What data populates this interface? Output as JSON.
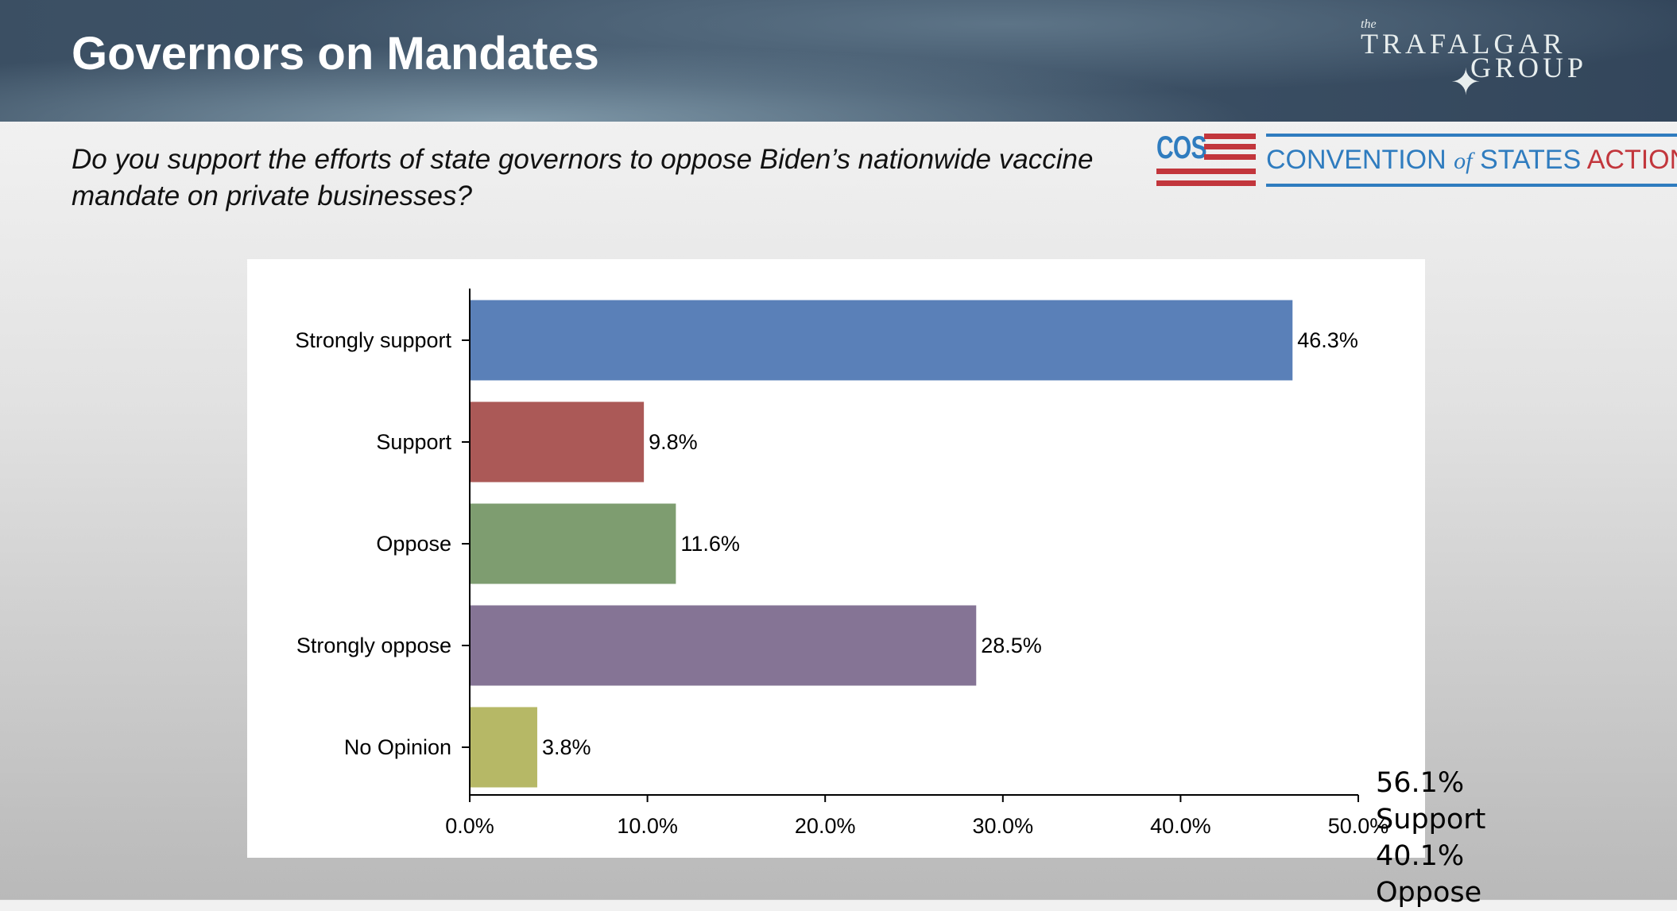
{
  "header": {
    "title": "Governors on Mandates"
  },
  "logos": {
    "trafalgar": {
      "the": "the",
      "line1": "TRAFALGAR",
      "line2": "GROUP",
      "text": "the TRAFALGAR GROUP"
    },
    "cos": {
      "abbr": "COS",
      "part1": "CONVENTION",
      "part2": "of",
      "part3": "STATES",
      "part4": "ACTION",
      "blue": "#2f7cbf",
      "red": "#c2363c"
    }
  },
  "question": "Do you support the efforts of state governors to oppose Biden’s nationwide vaccine mandate on private businesses?",
  "summary": {
    "support": "56.1% Support",
    "oppose": "40.1% Oppose"
  },
  "chart_data": {
    "type": "bar",
    "orientation": "horizontal",
    "categories": [
      "Strongly support",
      "Support",
      "Oppose",
      "Strongly oppose",
      "No Opinion"
    ],
    "values": [
      46.3,
      9.8,
      11.6,
      28.5,
      3.8
    ],
    "data_labels": [
      "46.3%",
      "9.8%",
      "11.6%",
      "28.5%",
      "3.8%"
    ],
    "colors": [
      "#5a80b8",
      "#ab5957",
      "#7e9d70",
      "#857495",
      "#b6b866"
    ],
    "xlim": [
      0,
      50
    ],
    "x_ticks": [
      0,
      10,
      20,
      30,
      40,
      50
    ],
    "x_tick_labels": [
      "0.0%",
      "10.0%",
      "20.0%",
      "30.0%",
      "40.0%",
      "50.0%"
    ],
    "grid": false,
    "legend": "none"
  }
}
